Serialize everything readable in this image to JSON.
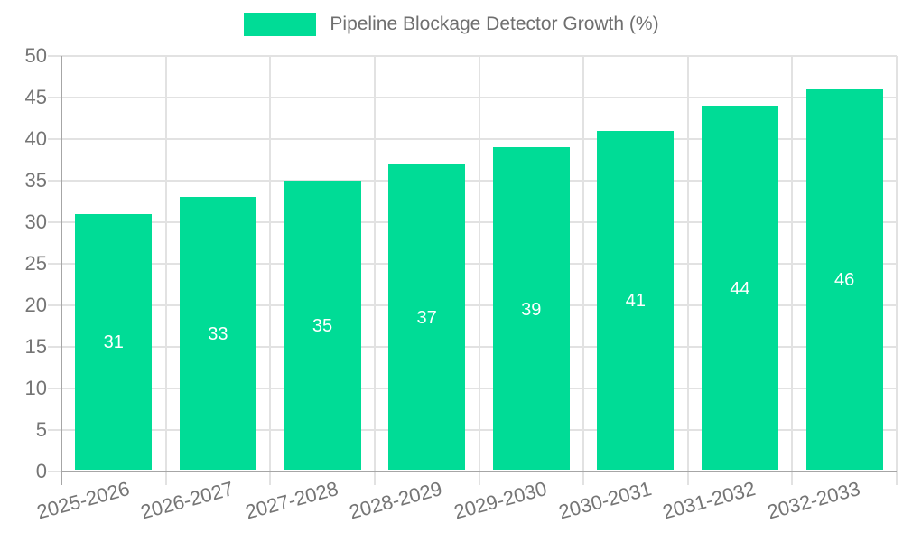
{
  "chart_data": {
    "type": "bar",
    "title": "Pipeline Blockage Detector Growth (%)",
    "legend_label": "Pipeline Blockage Detector Growth (%)",
    "legend_position": "top-center",
    "categories": [
      "2025-2026",
      "2026-2027",
      "2027-2028",
      "2028-2029",
      "2029-2030",
      "2030-2031",
      "2031-2032",
      "2032-2033"
    ],
    "values": [
      31,
      33,
      35,
      37,
      39,
      41,
      44,
      46
    ],
    "xlabel": "",
    "ylabel": "",
    "ylim": [
      0,
      50
    ],
    "ytick_step": 5,
    "yticks": [
      0,
      5,
      10,
      15,
      20,
      25,
      30,
      35,
      40,
      45,
      50
    ],
    "grid": true,
    "value_labels": "centered-inside-bars",
    "x_label_rotation_deg": -15,
    "colors": {
      "bar": "#00DC96",
      "value_label": "#ffffff",
      "axis_text": "#757575",
      "legend_text": "#6f6f6f",
      "gridline": "#e2e2e2",
      "axis_line": "#a6a6a6",
      "background": "#ffffff"
    }
  }
}
